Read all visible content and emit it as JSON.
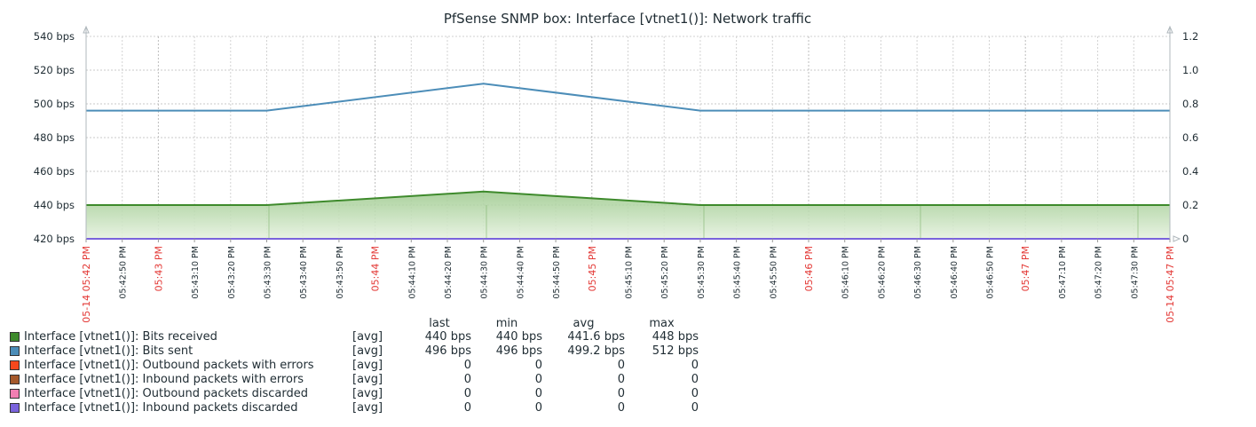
{
  "chart_data": {
    "type": "area",
    "title": "PfSense SNMP box: Interface [vtnet1()]: Network traffic",
    "left_axis": {
      "ticks": [
        "540 bps",
        "520 bps",
        "500 bps",
        "480 bps",
        "460 bps",
        "440 bps",
        "420 bps"
      ],
      "ylim": [
        420,
        540
      ]
    },
    "right_axis": {
      "ticks": [
        "1.2",
        "1.0",
        "0.8",
        "0.6",
        "0.4",
        "0.2",
        "0"
      ],
      "ylim": [
        0,
        1.2
      ]
    },
    "x_ticks": [
      {
        "label": "05-14 05:42 PM",
        "red": true
      },
      {
        "label": "05:42:50 PM",
        "red": false
      },
      {
        "label": "05:43 PM",
        "red": true
      },
      {
        "label": "05:43:10 PM",
        "red": false
      },
      {
        "label": "05:43:20 PM",
        "red": false
      },
      {
        "label": "05:43:30 PM",
        "red": false
      },
      {
        "label": "05:43:40 PM",
        "red": false
      },
      {
        "label": "05:43:50 PM",
        "red": false
      },
      {
        "label": "05:44 PM",
        "red": true
      },
      {
        "label": "05:44:10 PM",
        "red": false
      },
      {
        "label": "05:44:20 PM",
        "red": false
      },
      {
        "label": "05:44:30 PM",
        "red": false
      },
      {
        "label": "05:44:40 PM",
        "red": false
      },
      {
        "label": "05:44:50 PM",
        "red": false
      },
      {
        "label": "05:45 PM",
        "red": true
      },
      {
        "label": "05:45:10 PM",
        "red": false
      },
      {
        "label": "05:45:20 PM",
        "red": false
      },
      {
        "label": "05:45:30 PM",
        "red": false
      },
      {
        "label": "05:45:40 PM",
        "red": false
      },
      {
        "label": "05:45:50 PM",
        "red": false
      },
      {
        "label": "05:46 PM",
        "red": true
      },
      {
        "label": "05:46:10 PM",
        "red": false
      },
      {
        "label": "05:46:20 PM",
        "red": false
      },
      {
        "label": "05:46:30 PM",
        "red": false
      },
      {
        "label": "05:46:40 PM",
        "red": false
      },
      {
        "label": "05:46:50 PM",
        "red": false
      },
      {
        "label": "05:47 PM",
        "red": true
      },
      {
        "label": "05:47:10 PM",
        "red": false
      },
      {
        "label": "05:47:20 PM",
        "red": false
      },
      {
        "label": "05:47:30 PM",
        "red": false
      },
      {
        "label": "05-14 05:47 PM",
        "red": true
      }
    ],
    "series": [
      {
        "name": "Interface [vtnet1()]: Bits received",
        "color": "#3e8a2c",
        "x": [
          "05:42:40 PM",
          "05:43:30 PM",
          "05:44:30 PM",
          "05:45:30 PM",
          "05:47:40 PM"
        ],
        "values": [
          440,
          440,
          448,
          440,
          440
        ],
        "fill": true
      },
      {
        "name": "Interface [vtnet1()]: Bits sent",
        "color": "#4c8db8",
        "x": [
          "05:42:40 PM",
          "05:43:30 PM",
          "05:44:30 PM",
          "05:45:30 PM",
          "05:47:40 PM"
        ],
        "values": [
          496,
          496,
          512,
          496,
          496
        ],
        "fill": false
      },
      {
        "name": "Interface [vtnet1()]: Outbound packets with errors",
        "color": "#f6481d",
        "values": [
          0,
          0
        ],
        "fill": false
      },
      {
        "name": "Interface [vtnet1()]: Inbound packets with errors",
        "color": "#a5592b",
        "values": [
          0,
          0
        ],
        "fill": false
      },
      {
        "name": "Interface [vtnet1()]: Outbound packets discarded",
        "color": "#f27fb2",
        "values": [
          0,
          0
        ],
        "fill": false
      },
      {
        "name": "Interface [vtnet1()]: Inbound packets discarded",
        "color": "#7a63dc",
        "values": [
          0,
          0
        ],
        "fill": false
      }
    ],
    "grid": true
  },
  "legend": {
    "headers": {
      "last": "last",
      "min": "min",
      "avg": "avg",
      "max": "max"
    },
    "rows": [
      {
        "name": "Interface [vtnet1()]: Bits received",
        "fn": "[avg]",
        "last": "440 bps",
        "min": "440 bps",
        "avg": "441.6 bps",
        "max": "448 bps",
        "color": "#3e8a2c"
      },
      {
        "name": "Interface [vtnet1()]: Bits sent",
        "fn": "[avg]",
        "last": "496 bps",
        "min": "496 bps",
        "avg": "499.2 bps",
        "max": "512 bps",
        "color": "#4c8db8"
      },
      {
        "name": "Interface [vtnet1()]: Outbound packets with errors",
        "fn": "[avg]",
        "last": "0",
        "min": "0",
        "avg": "0",
        "max": "0",
        "color": "#f6481d"
      },
      {
        "name": "Interface [vtnet1()]: Inbound packets with errors",
        "fn": "[avg]",
        "last": "0",
        "min": "0",
        "avg": "0",
        "max": "0",
        "color": "#a5592b"
      },
      {
        "name": "Interface [vtnet1()]: Outbound packets discarded",
        "fn": "[avg]",
        "last": "0",
        "min": "0",
        "avg": "0",
        "max": "0",
        "color": "#f27fb2"
      },
      {
        "name": "Interface [vtnet1()]: Inbound packets discarded",
        "fn": "[avg]",
        "last": "0",
        "min": "0",
        "avg": "0",
        "max": "0",
        "color": "#7a63dc"
      }
    ]
  }
}
